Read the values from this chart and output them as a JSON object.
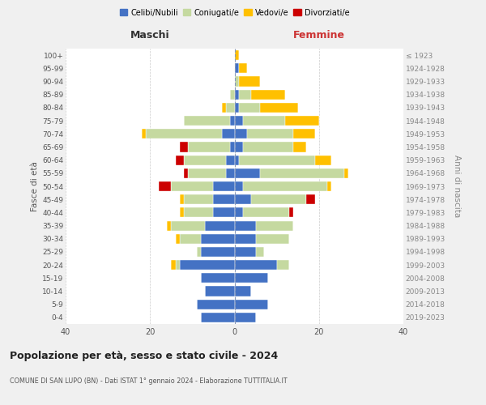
{
  "age_groups": [
    "100+",
    "95-99",
    "90-94",
    "85-89",
    "80-84",
    "75-79",
    "70-74",
    "65-69",
    "60-64",
    "55-59",
    "50-54",
    "45-49",
    "40-44",
    "35-39",
    "30-34",
    "25-29",
    "20-24",
    "15-19",
    "10-14",
    "5-9",
    "0-4"
  ],
  "birth_years": [
    "≤ 1923",
    "1924-1928",
    "1929-1933",
    "1934-1938",
    "1939-1943",
    "1944-1948",
    "1949-1953",
    "1954-1958",
    "1959-1963",
    "1964-1968",
    "1969-1973",
    "1974-1978",
    "1979-1983",
    "1984-1988",
    "1989-1993",
    "1994-1998",
    "1999-2003",
    "2004-2008",
    "2009-2013",
    "2014-2018",
    "2019-2023"
  ],
  "colors": {
    "celibi": "#4472c4",
    "coniugati": "#c5d9a0",
    "vedovi": "#ffc000",
    "divorziati": "#cc0000"
  },
  "maschi": {
    "celibi": [
      0,
      0,
      0,
      0,
      0,
      1,
      3,
      1,
      2,
      2,
      5,
      5,
      5,
      7,
      8,
      8,
      13,
      8,
      7,
      9,
      8
    ],
    "coniugati": [
      0,
      0,
      0,
      1,
      2,
      11,
      18,
      10,
      10,
      9,
      10,
      7,
      7,
      8,
      5,
      1,
      1,
      0,
      0,
      0,
      0
    ],
    "vedovi": [
      0,
      0,
      0,
      0,
      1,
      0,
      1,
      0,
      0,
      0,
      0,
      1,
      1,
      1,
      1,
      0,
      1,
      0,
      0,
      0,
      0
    ],
    "divorziati": [
      0,
      0,
      0,
      0,
      0,
      0,
      0,
      2,
      2,
      1,
      3,
      0,
      0,
      0,
      0,
      0,
      0,
      0,
      0,
      0,
      0
    ]
  },
  "femmine": {
    "celibi": [
      0,
      1,
      0,
      1,
      1,
      2,
      3,
      2,
      1,
      6,
      2,
      4,
      2,
      5,
      5,
      5,
      10,
      8,
      4,
      8,
      5
    ],
    "coniugati": [
      0,
      0,
      1,
      3,
      5,
      10,
      11,
      12,
      18,
      20,
      20,
      13,
      11,
      9,
      8,
      2,
      3,
      0,
      0,
      0,
      0
    ],
    "vedovi": [
      1,
      2,
      5,
      8,
      9,
      8,
      5,
      3,
      4,
      1,
      1,
      0,
      0,
      0,
      0,
      0,
      0,
      0,
      0,
      0,
      0
    ],
    "divorziati": [
      0,
      0,
      0,
      0,
      0,
      0,
      0,
      0,
      0,
      0,
      0,
      2,
      1,
      0,
      0,
      0,
      0,
      0,
      0,
      0,
      0
    ]
  },
  "title": "Popolazione per età, sesso e stato civile - 2024",
  "subtitle": "COMUNE DI SAN LUPO (BN) - Dati ISTAT 1° gennaio 2024 - Elaborazione TUTTITALIA.IT",
  "header_left": "Maschi",
  "header_right": "Femmine",
  "ylabel_left": "Fasce di età",
  "ylabel_right": "Anni di nascita",
  "legend_labels": [
    "Celibi/Nubili",
    "Coniugati/e",
    "Vedovi/e",
    "Divorziati/e"
  ],
  "xlim": 40,
  "background_color": "#f0f0f0",
  "plot_bg": "#ffffff"
}
